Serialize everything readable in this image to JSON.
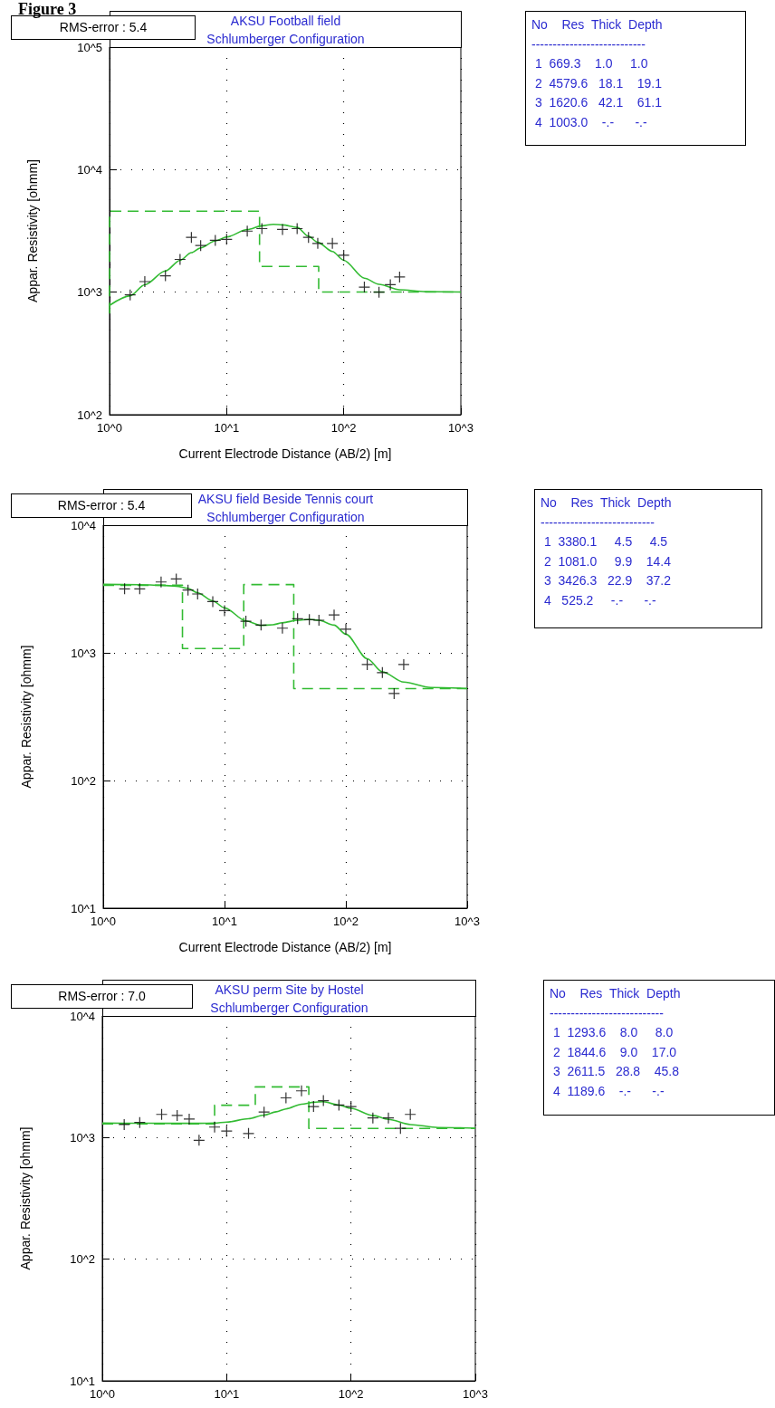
{
  "chart_data": [
    {
      "type": "scatter",
      "title": "AKSU Football field",
      "subtitle": "Schlumberger Configuration",
      "xlabel": "Current Electrode Distance (AB/2) [m]",
      "ylabel": "Appar. Resistivity [ohmm]",
      "log": "xy",
      "grid": true,
      "xlim": [
        1,
        1000
      ],
      "xticks": [
        {
          "value": 1,
          "label": "10^0"
        },
        {
          "value": 10,
          "label": "10^1"
        },
        {
          "value": 100,
          "label": "10^2"
        },
        {
          "value": 1000,
          "label": "10^3"
        }
      ],
      "ylim": [
        100,
        100000
      ],
      "yticks": [
        {
          "value": 100,
          "label": "10^2"
        },
        {
          "value": 1000,
          "label": "10^3"
        },
        {
          "value": 10000,
          "label": "10^4"
        },
        {
          "value": 100000,
          "label": "10^5"
        }
      ],
      "annotations": [
        "RMS-error :  5.4",
        "No    Res  Thick  Depth",
        "---------------------------",
        " 1  669.3    1.0     1.0",
        " 2  4579.6   18.1    19.1",
        " 3  1620.6   42.1    61.1",
        " 4  1003.0    -.-      -.-",
        "Figure 3"
      ],
      "series": [
        {
          "marker": "cross",
          "color": "#000000",
          "x": [
            1.5,
            2,
            3,
            4,
            5,
            6,
            8,
            10,
            15,
            20,
            30,
            40,
            50,
            60,
            80,
            100,
            150,
            200,
            250,
            300
          ],
          "values": [
            950,
            1220,
            1360,
            1850,
            2800,
            2400,
            2650,
            2700,
            3150,
            3300,
            3250,
            3300,
            2800,
            2500,
            2500,
            2000,
            1100,
            1000,
            1150,
            1330
          ]
        },
        {
          "type": "line",
          "marker": "none",
          "line_style": "solid",
          "color": "#33bb33",
          "x": [
            1,
            1.5,
            2,
            3,
            4,
            5,
            6,
            8,
            10,
            15,
            20,
            25,
            30,
            40,
            50,
            60,
            80,
            100,
            150,
            200,
            300,
            500,
            1000
          ],
          "values": [
            780,
            935,
            1150,
            1490,
            1820,
            2100,
            2300,
            2620,
            2820,
            3240,
            3480,
            3580,
            3540,
            3380,
            2860,
            2550,
            2150,
            1820,
            1300,
            1160,
            1047,
            1010,
            1003
          ]
        },
        {
          "type": "line",
          "marker": "none",
          "line_style": "dashed",
          "color": "#33bb33",
          "x": [
            1,
            1,
            19.1,
            19.1,
            61.1,
            61.1,
            1000
          ],
          "values": [
            669.3,
            4579.6,
            4579.6,
            1620.6,
            1620.6,
            1003,
            1003
          ]
        }
      ]
    },
    {
      "type": "scatter",
      "title": "AKSU field Beside Tennis court",
      "subtitle": "Schlumberger Configuration",
      "xlabel": "Current Electrode Distance (AB/2) [m]",
      "ylabel": "Appar. Resistivity [ohmm]",
      "log": "xy",
      "grid": true,
      "xlim": [
        1,
        1000
      ],
      "xticks": [
        {
          "value": 1,
          "label": "10^0"
        },
        {
          "value": 10,
          "label": "10^1"
        },
        {
          "value": 100,
          "label": "10^2"
        },
        {
          "value": 1000,
          "label": "10^3"
        }
      ],
      "ylim": [
        10,
        10000
      ],
      "yticks": [
        {
          "value": 10,
          "label": "10^1"
        },
        {
          "value": 100,
          "label": "10^2"
        },
        {
          "value": 1000,
          "label": "10^3"
        },
        {
          "value": 10000,
          "label": "10^4"
        }
      ],
      "annotations": [
        "RMS-error :  5.4",
        "No    Res  Thick  Depth",
        "---------------------------",
        " 1  3380.1     4.5     4.5",
        " 2  1081.0     9.9    14.4",
        " 3  3426.3   22.9    37.2",
        " 4   525.2     -.-      -.-"
      ],
      "series": [
        {
          "marker": "cross",
          "color": "#000000",
          "x": [
            1.5,
            2,
            3,
            4,
            5,
            6,
            8,
            10,
            15,
            20,
            30,
            40,
            50,
            60,
            80,
            100,
            150,
            200,
            250,
            300
          ],
          "values": [
            3170,
            3170,
            3590,
            3790,
            3100,
            2890,
            2520,
            2140,
            1770,
            1650,
            1560,
            1850,
            1820,
            1800,
            1980,
            1530,
            810,
            700,
            480,
            810
          ]
        },
        {
          "type": "line",
          "marker": "none",
          "line_style": "solid",
          "color": "#33bb33",
          "x": [
            1,
            2,
            3,
            4,
            5,
            6,
            8,
            10,
            15,
            20,
            25,
            30,
            40,
            50,
            60,
            80,
            100,
            150,
            200,
            300,
            500,
            1000
          ],
          "values": [
            3440,
            3420,
            3380,
            3330,
            3200,
            2950,
            2550,
            2250,
            1780,
            1640,
            1660,
            1720,
            1800,
            1830,
            1800,
            1650,
            1400,
            900,
            710,
            590,
            535,
            526
          ]
        },
        {
          "type": "line",
          "marker": "none",
          "line_style": "dashed",
          "color": "#33bb33",
          "x": [
            1,
            4.5,
            4.5,
            14.4,
            14.4,
            37.2,
            37.2,
            1000
          ],
          "values": [
            3380.1,
            3380.1,
            1081,
            1081,
            3426.3,
            3426.3,
            525.2,
            525.2
          ]
        }
      ]
    },
    {
      "type": "scatter",
      "title": "AKSU perm Site by Hostel",
      "subtitle": "Schlumberger Configuration",
      "ylabel": "Appar. Resistivity [ohmm]",
      "log": "xy",
      "grid": true,
      "xlim": [
        1,
        1000
      ],
      "xticks": [
        {
          "value": 1,
          "label": "10^0"
        },
        {
          "value": 10,
          "label": "10^1"
        },
        {
          "value": 100,
          "label": "10^2"
        },
        {
          "value": 1000,
          "label": "10^3"
        }
      ],
      "ylim": [
        10,
        10000
      ],
      "yticks": [
        {
          "value": 10,
          "label": "10^1"
        },
        {
          "value": 100,
          "label": "10^2"
        },
        {
          "value": 1000,
          "label": "10^3"
        },
        {
          "value": 10000,
          "label": "10^4"
        }
      ],
      "annotations": [
        "RMS-error :  7.0",
        "No    Res  Thick  Depth",
        "---------------------------",
        " 1  1293.6    8.0     8.0",
        " 2  1844.6    9.0    17.0",
        " 3  2611.5   28.8    45.8",
        " 4  1189.6    -.-      -.-"
      ],
      "series": [
        {
          "marker": "cross",
          "color": "#000000",
          "x": [
            1.5,
            2,
            3,
            4,
            5,
            6,
            8,
            10,
            15,
            20,
            30,
            40,
            50,
            60,
            80,
            100,
            150,
            200,
            250,
            300
          ],
          "values": [
            1280,
            1330,
            1550,
            1520,
            1420,
            950,
            1220,
            1130,
            1080,
            1620,
            2120,
            2420,
            1800,
            2010,
            1850,
            1800,
            1450,
            1450,
            1190,
            1550
          ]
        },
        {
          "type": "line",
          "marker": "none",
          "line_style": "solid",
          "color": "#33bb33",
          "x": [
            1,
            2,
            3,
            4,
            5,
            6,
            8,
            10,
            15,
            20,
            25,
            30,
            40,
            50,
            60,
            80,
            100,
            150,
            200,
            300,
            500,
            1000
          ],
          "values": [
            1315,
            1312,
            1310,
            1310,
            1310,
            1310,
            1315,
            1340,
            1430,
            1530,
            1630,
            1720,
            1880,
            1950,
            1970,
            1850,
            1740,
            1520,
            1410,
            1280,
            1210,
            1195
          ]
        },
        {
          "type": "line",
          "marker": "none",
          "line_style": "dashed",
          "color": "#33bb33",
          "x": [
            1,
            8,
            8,
            17,
            17,
            45.8,
            45.8,
            1000
          ],
          "values": [
            1293.6,
            1293.6,
            1844.6,
            1844.6,
            2611.5,
            2611.5,
            1189.6,
            1189.6
          ]
        }
      ]
    }
  ]
}
